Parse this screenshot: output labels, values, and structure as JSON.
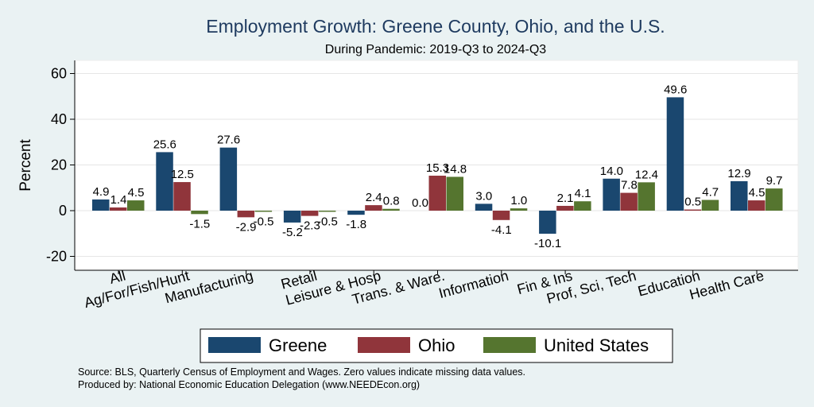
{
  "chart_data": {
    "type": "bar",
    "title": "Employment Growth: Greene County, Ohio, and the U.S.",
    "subtitle": "During Pandemic: 2019-Q3 to 2024-Q3",
    "ylabel": "Percent",
    "xlabel": "",
    "ylim": [
      -26,
      66
    ],
    "yticks": [
      -20,
      0,
      20,
      40,
      60
    ],
    "grid": true,
    "legend_position": "bottom",
    "categories": [
      "All",
      "Ag/For/Fish/Hunt",
      "Manufacturing",
      "Retail",
      "Leisure & Hosp",
      "Trans. & Ware.",
      "Information",
      "Fin & Ins",
      "Prof, Sci, Tech",
      "Education",
      "Health Care"
    ],
    "series": [
      {
        "name": "Greene",
        "color": "#1a476f",
        "values": [
          4.9,
          25.6,
          27.6,
          -5.2,
          -1.8,
          0.0,
          3.0,
          -10.1,
          14.0,
          49.6,
          12.9
        ]
      },
      {
        "name": "Ohio",
        "color": "#90353b",
        "values": [
          1.4,
          12.5,
          -2.9,
          -2.3,
          2.4,
          15.3,
          -4.1,
          2.1,
          7.8,
          0.5,
          4.5
        ]
      },
      {
        "name": "United States",
        "color": "#55752f",
        "values": [
          4.5,
          -1.5,
          -0.5,
          -0.5,
          0.8,
          14.8,
          1.0,
          4.1,
          12.4,
          4.7,
          9.7
        ]
      }
    ],
    "notes": [
      "Source: BLS, Quarterly Census of Employment and Wages. Zero values indicate missing data values.",
      "Produced by: National Economic Education Delegation (www.NEEDEcon.org)"
    ]
  }
}
